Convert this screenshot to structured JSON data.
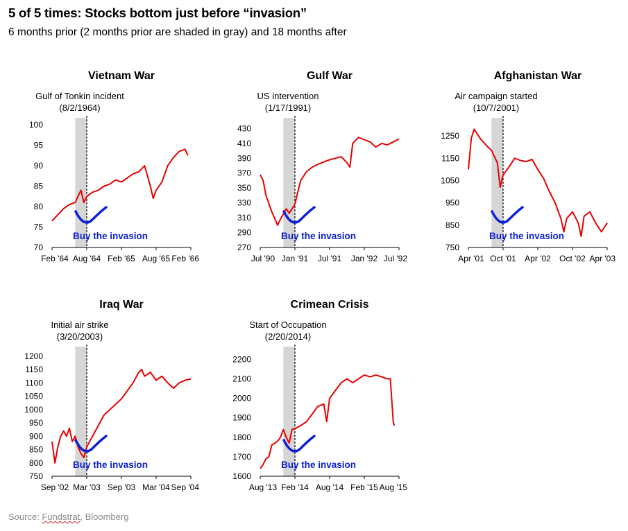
{
  "header": {
    "title": "5 of 5 times: Stocks bottom just before “invasion”",
    "subtitle": "6 months prior (2 months prior are shaded in gray) and 18 months after"
  },
  "source": {
    "prefix": "Source: ",
    "fundstrat": "Fundstrat",
    "rest": ", Bloomberg"
  },
  "style": {
    "line_color": "#e80000",
    "annotation_color": "#0a1fd6",
    "shade_color": "#d6d6d6"
  },
  "chart_data": [
    {
      "type": "line",
      "title": "Vietnam War",
      "event_label": "Gulf of Tonkin incident",
      "event_date": "(8/2/1964)",
      "annotation": "Buy the invasion",
      "xlabels": [
        "Feb '64",
        "Aug '64",
        "Feb '65",
        "Aug '65",
        "Feb '66"
      ],
      "yticks": [
        70,
        75,
        80,
        85,
        90,
        95,
        100
      ],
      "ylim": [
        70,
        100
      ],
      "xlim_months": [
        0,
        24
      ],
      "shade_months": [
        4,
        6
      ],
      "event_month": 6,
      "series": [
        [
          0,
          76.5
        ],
        [
          1,
          78
        ],
        [
          2,
          79.5
        ],
        [
          3,
          80.5
        ],
        [
          4,
          81
        ],
        [
          5,
          84
        ],
        [
          5.5,
          81
        ],
        [
          6,
          82.5
        ],
        [
          7,
          83.5
        ],
        [
          8,
          84
        ],
        [
          9,
          85
        ],
        [
          10,
          85.5
        ],
        [
          11,
          86.5
        ],
        [
          12,
          86
        ],
        [
          13,
          87
        ],
        [
          14,
          88
        ],
        [
          15,
          88.5
        ],
        [
          16,
          90
        ],
        [
          17,
          85
        ],
        [
          17.5,
          82
        ],
        [
          18,
          84
        ],
        [
          19,
          86
        ],
        [
          20,
          90
        ],
        [
          21,
          92
        ],
        [
          22,
          93.5
        ],
        [
          23,
          94
        ],
        [
          23.5,
          92.5
        ]
      ]
    },
    {
      "type": "line",
      "title": "Gulf War",
      "event_label": "US intervention",
      "event_date": "(1/17/1991)",
      "annotation": "Buy the invasion",
      "xlabels": [
        "Jul '90",
        "Jan '91",
        "Jul '91",
        "Jan '92",
        "Jul '92"
      ],
      "yticks": [
        270,
        290,
        310,
        330,
        350,
        370,
        390,
        410,
        430
      ],
      "ylim": [
        270,
        435
      ],
      "xlim_months": [
        0,
        24
      ],
      "shade_months": [
        4,
        6
      ],
      "event_month": 6,
      "series": [
        [
          0,
          368
        ],
        [
          0.5,
          360
        ],
        [
          1,
          340
        ],
        [
          2,
          318
        ],
        [
          3,
          300
        ],
        [
          3.5,
          308
        ],
        [
          4,
          315
        ],
        [
          4.5,
          322
        ],
        [
          5,
          316
        ],
        [
          5.5,
          322
        ],
        [
          6,
          328
        ],
        [
          6.5,
          345
        ],
        [
          7,
          360
        ],
        [
          8,
          372
        ],
        [
          9,
          378
        ],
        [
          10,
          382
        ],
        [
          11,
          385
        ],
        [
          12,
          388
        ],
        [
          13,
          390
        ],
        [
          14,
          392
        ],
        [
          15,
          384
        ],
        [
          15.5,
          378
        ],
        [
          16,
          410
        ],
        [
          17,
          418
        ],
        [
          18,
          415
        ],
        [
          19,
          412
        ],
        [
          20,
          405
        ],
        [
          21,
          410
        ],
        [
          22,
          408
        ],
        [
          23,
          412
        ],
        [
          24,
          416
        ]
      ]
    },
    {
      "type": "line",
      "title": "Afghanistan War",
      "event_label": "Air campaign started",
      "event_date": "(10/7/2001)",
      "annotation": "Buy the invasion",
      "xlabels": [
        "Apr '01",
        "Oct '01",
        "Apr '02",
        "Oct '02",
        "Apr '03"
      ],
      "yticks": [
        750,
        850,
        950,
        1050,
        1150,
        1250
      ],
      "ylim": [
        750,
        1300
      ],
      "xlim_months": [
        0,
        24
      ],
      "shade_months": [
        4,
        6
      ],
      "event_month": 6,
      "series": [
        [
          0,
          1100
        ],
        [
          0.5,
          1240
        ],
        [
          1,
          1280
        ],
        [
          2,
          1240
        ],
        [
          3,
          1210
        ],
        [
          4,
          1185
        ],
        [
          5,
          1130
        ],
        [
          5.5,
          1020
        ],
        [
          6,
          1075
        ],
        [
          7,
          1110
        ],
        [
          8,
          1150
        ],
        [
          9,
          1140
        ],
        [
          10,
          1135
        ],
        [
          11,
          1145
        ],
        [
          12,
          1100
        ],
        [
          13,
          1060
        ],
        [
          14,
          1000
        ],
        [
          15,
          950
        ],
        [
          16,
          880
        ],
        [
          16.5,
          820
        ],
        [
          17,
          880
        ],
        [
          18,
          910
        ],
        [
          19,
          860
        ],
        [
          19.5,
          800
        ],
        [
          20,
          890
        ],
        [
          21,
          910
        ],
        [
          22,
          860
        ],
        [
          23,
          820
        ],
        [
          24,
          860
        ]
      ]
    },
    {
      "type": "line",
      "title": "Iraq War",
      "event_label": "Initial air strike",
      "event_date": "(3/20/2003)",
      "annotation": "Buy the invasion",
      "xlabels": [
        "Sep '02",
        "Mar '03",
        "Sep '03",
        "Mar '04",
        "Sep '04"
      ],
      "yticks": [
        750,
        800,
        850,
        900,
        950,
        1000,
        1050,
        1100,
        1150,
        1200
      ],
      "ylim": [
        750,
        1210
      ],
      "xlim_months": [
        0,
        24
      ],
      "shade_months": [
        4,
        6
      ],
      "event_month": 6,
      "series": [
        [
          0,
          880
        ],
        [
          0.5,
          800
        ],
        [
          1,
          860
        ],
        [
          1.5,
          900
        ],
        [
          2,
          920
        ],
        [
          2.5,
          900
        ],
        [
          3,
          930
        ],
        [
          3.5,
          880
        ],
        [
          4,
          900
        ],
        [
          4.5,
          860
        ],
        [
          5,
          835
        ],
        [
          5.5,
          820
        ],
        [
          6,
          860
        ],
        [
          7,
          900
        ],
        [
          8,
          940
        ],
        [
          9,
          980
        ],
        [
          10,
          1000
        ],
        [
          11,
          1020
        ],
        [
          12,
          1040
        ],
        [
          13,
          1070
        ],
        [
          14,
          1100
        ],
        [
          15,
          1140
        ],
        [
          15.5,
          1150
        ],
        [
          16,
          1125
        ],
        [
          17,
          1140
        ],
        [
          18,
          1110
        ],
        [
          19,
          1125
        ],
        [
          20,
          1100
        ],
        [
          21,
          1080
        ],
        [
          22,
          1100
        ],
        [
          23,
          1110
        ],
        [
          24,
          1115
        ]
      ]
    },
    {
      "type": "line",
      "title": "Crimean Crisis",
      "event_label": "Start of Occupation",
      "event_date": "(2/20/2014)",
      "annotation": "Buy the invasion",
      "xlabels": [
        "Aug '13",
        "Feb '14",
        "Aug '14",
        "Feb '15",
        "Aug '15"
      ],
      "yticks": [
        1600,
        1700,
        1800,
        1900,
        2000,
        2100,
        2200
      ],
      "ylim": [
        1600,
        2230
      ],
      "xlim_months": [
        0,
        24
      ],
      "shade_months": [
        4,
        6
      ],
      "event_month": 6,
      "series": [
        [
          0,
          1640
        ],
        [
          0.5,
          1660
        ],
        [
          1,
          1690
        ],
        [
          1.5,
          1700
        ],
        [
          2,
          1760
        ],
        [
          3,
          1780
        ],
        [
          3.5,
          1800
        ],
        [
          4,
          1840
        ],
        [
          4.5,
          1800
        ],
        [
          5,
          1770
        ],
        [
          5.5,
          1840
        ],
        [
          6,
          1845
        ],
        [
          7,
          1860
        ],
        [
          8,
          1880
        ],
        [
          9,
          1920
        ],
        [
          10,
          1960
        ],
        [
          11,
          1970
        ],
        [
          11.5,
          1880
        ],
        [
          12,
          2000
        ],
        [
          13,
          2040
        ],
        [
          14,
          2080
        ],
        [
          15,
          2100
        ],
        [
          16,
          2080
        ],
        [
          17,
          2100
        ],
        [
          18,
          2120
        ],
        [
          19,
          2110
        ],
        [
          20,
          2120
        ],
        [
          21,
          2110
        ],
        [
          22,
          2100
        ],
        [
          22.5,
          2100
        ],
        [
          23,
          1880
        ],
        [
          23.2,
          1860
        ]
      ]
    }
  ]
}
